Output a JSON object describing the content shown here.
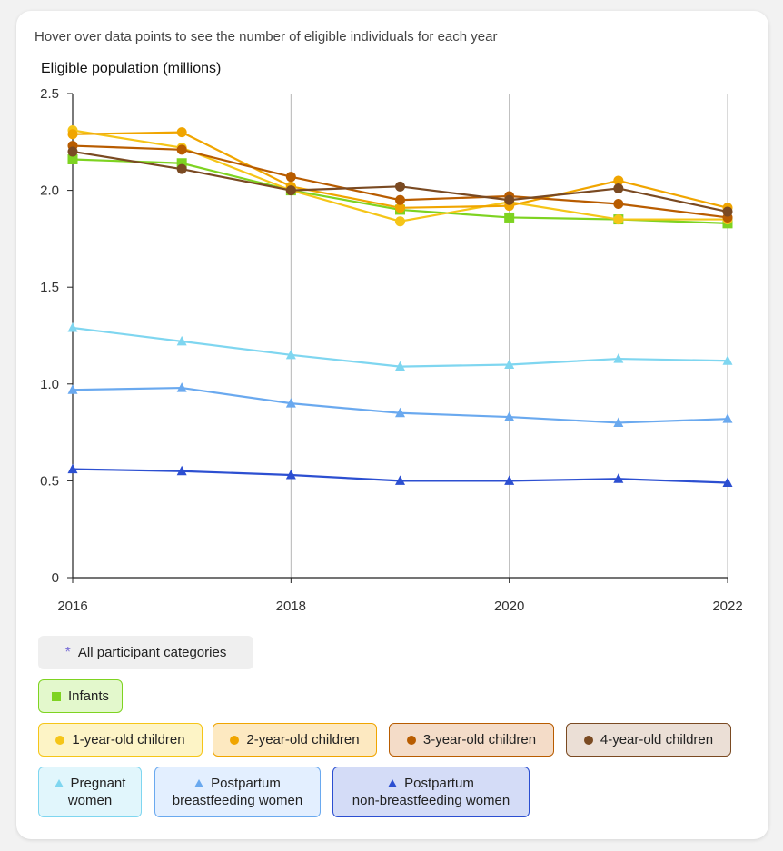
{
  "hint": "Hover over data points to see the number of eligible individuals for each year",
  "colors": {
    "infants": "#7ed321",
    "one_year": "#f5c518",
    "two_year": "#f0a500",
    "three_year": "#b85c00",
    "four_year": "#7a4a22",
    "pregnant": "#7fd6f0",
    "pp_breast": "#6aa9ef",
    "pp_nonbreast": "#2c4fd1"
  },
  "legend": {
    "all": {
      "label": "All participant categories",
      "icon": "asterisk"
    },
    "infants": {
      "label": "Infants",
      "icon": "square"
    },
    "one_year": {
      "label": "1-year-old children",
      "icon": "circle"
    },
    "two_year": {
      "label": "2-year-old children",
      "icon": "circle"
    },
    "three_year": {
      "label": "3-year-old children",
      "icon": "circle"
    },
    "four_year": {
      "label": "4-year-old children",
      "icon": "circle"
    },
    "pregnant": {
      "line1": "Pregnant",
      "line2": "women",
      "icon": "triangle"
    },
    "pp_breast": {
      "line1": "Postpartum",
      "line2": "breastfeeding women",
      "icon": "triangle"
    },
    "pp_nonbreast": {
      "line1": "Postpartum",
      "line2": "non-breastfeeding women",
      "icon": "triangle"
    }
  },
  "chart_data": {
    "type": "line",
    "title": "",
    "ylabel": "Eligible population (millions)",
    "xlabel": "",
    "x": [
      2016,
      2017,
      2018,
      2019,
      2020,
      2021,
      2022
    ],
    "xticks": [
      "2016",
      "2018",
      "2020",
      "2022"
    ],
    "xtick_values": [
      2016,
      2018,
      2020,
      2022
    ],
    "yticks": [
      "0",
      "0.5",
      "1.0",
      "1.5",
      "2.0",
      "2.5"
    ],
    "ytick_values": [
      0,
      0.5,
      1.0,
      1.5,
      2.0,
      2.5
    ],
    "ylim": [
      0,
      2.5
    ],
    "grid": "vertical",
    "series": [
      {
        "key": "infants",
        "name": "Infants",
        "marker": "square",
        "values": [
          2.16,
          2.14,
          2.0,
          1.9,
          1.86,
          1.85,
          1.83
        ]
      },
      {
        "key": "one_year",
        "name": "1-year-old children",
        "marker": "circle",
        "values": [
          2.31,
          2.22,
          2.0,
          1.84,
          1.94,
          1.85,
          1.85
        ]
      },
      {
        "key": "two_year",
        "name": "2-year-old children",
        "marker": "circle",
        "values": [
          2.29,
          2.3,
          2.02,
          1.91,
          1.92,
          2.05,
          1.91
        ]
      },
      {
        "key": "three_year",
        "name": "3-year-old children",
        "marker": "circle",
        "values": [
          2.23,
          2.21,
          2.07,
          1.95,
          1.97,
          1.93,
          1.86
        ]
      },
      {
        "key": "four_year",
        "name": "4-year-old children",
        "marker": "circle",
        "values": [
          2.2,
          2.11,
          2.0,
          2.02,
          1.95,
          2.01,
          1.89
        ]
      },
      {
        "key": "pregnant",
        "name": "Pregnant women",
        "marker": "triangle",
        "values": [
          1.29,
          1.22,
          1.15,
          1.09,
          1.1,
          1.13,
          1.12
        ]
      },
      {
        "key": "pp_breast",
        "name": "Postpartum breastfeeding women",
        "marker": "triangle",
        "values": [
          0.97,
          0.98,
          0.9,
          0.85,
          0.83,
          0.8,
          0.82
        ]
      },
      {
        "key": "pp_nonbreast",
        "name": "Postpartum non-breastfeeding women",
        "marker": "triangle",
        "values": [
          0.56,
          0.55,
          0.53,
          0.5,
          0.5,
          0.51,
          0.49
        ]
      }
    ]
  }
}
